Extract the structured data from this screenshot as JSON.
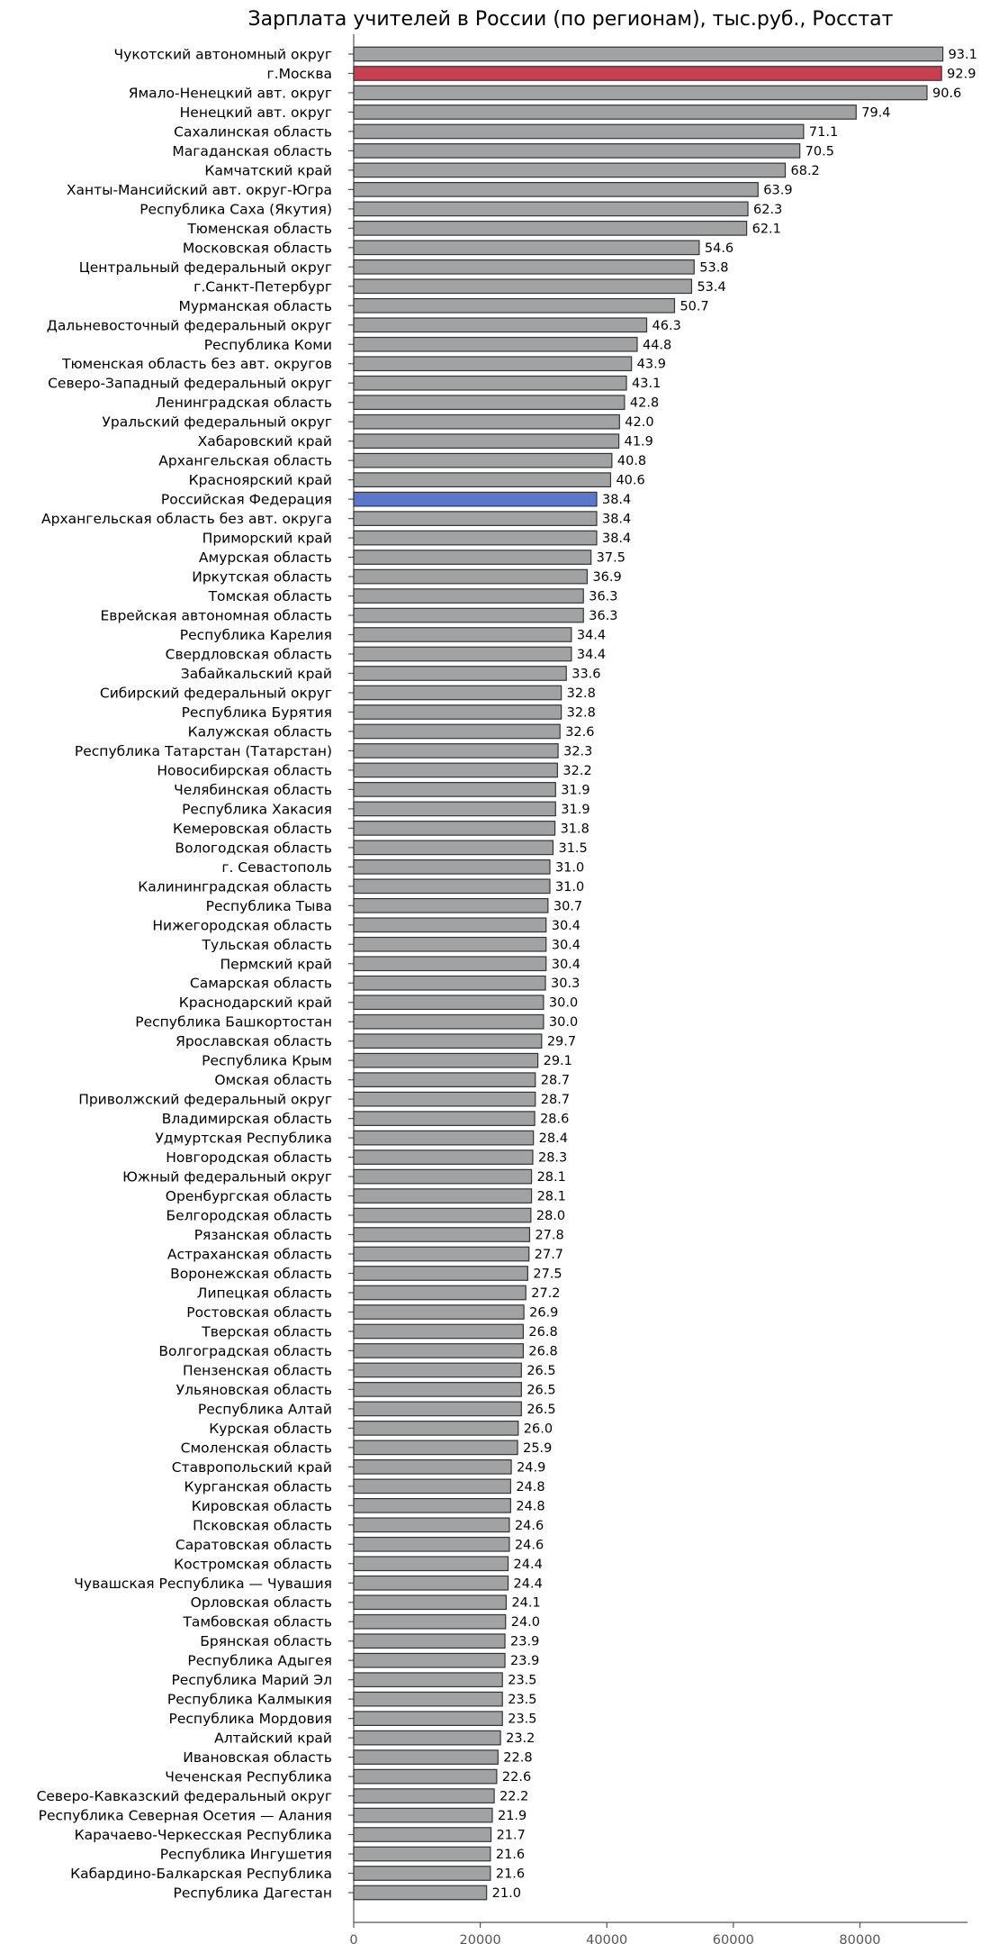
{
  "chart_data": {
    "type": "bar",
    "orientation": "horizontal",
    "title": "Зарплата учителей в России (по регионам), тыс.руб., Росстат",
    "xlabel": "",
    "ylabel": "",
    "xlim": [
      0,
      97000
    ],
    "x_ticks": [
      0,
      20000,
      40000,
      60000,
      80000
    ],
    "x_tick_labels": [
      "0",
      "20000",
      "40000",
      "60000",
      "80000"
    ],
    "colors": {
      "default": "#a0a2a4",
      "highlight_red": "#c8404f",
      "highlight_blue": "#5b77cc",
      "edge": "#333333"
    },
    "categories": [
      "Чукотский автономный округ",
      "г.Москва",
      "Ямало-Ненецкий авт. округ",
      "Ненецкий авт. округ",
      "Сахалинская область",
      "Магаданская область",
      "Камчатский край",
      "Ханты-Мансийский авт. округ-Югра",
      "Республика Саха (Якутия)",
      "Тюменская область",
      "Московская область",
      "Центральный федеральный округ",
      "г.Санкт-Петербург",
      "Мурманская область",
      "Дальневосточный федеральный округ",
      "Республика Коми",
      "Тюменская область без авт. округов",
      "Северо-Западный федеральный округ",
      "Ленинградская область",
      "Уральский федеральный округ",
      "Хабаровский край",
      "Архангельская область",
      "Красноярский край",
      "Российская Федерация",
      "Архангельская область без авт. округа",
      "Приморский край",
      "Амурская область",
      "Иркутская область",
      "Томская область",
      "Еврейская автономная область",
      "Республика Карелия",
      "Свердловская область",
      "Забайкальский край",
      "Сибирский федеральный округ",
      "Республика Бурятия",
      "Калужская область",
      "Республика Татарстан (Татарстан)",
      "Новосибирская область",
      "Челябинская область",
      "Республика Хакасия",
      "Кемеровская область",
      "Вологодская область",
      "г. Севастополь",
      "Калининградская область",
      "Республика Тыва",
      "Нижегородская область",
      "Тульская область",
      "Пермский край",
      "Самарская область",
      "Краснодарский край",
      "Республика Башкортостан",
      "Ярославская область",
      "Республика Крым",
      "Омская область",
      "Приволжский федеральный округ",
      "Владимирская область",
      "Удмуртская Республика",
      "Новгородская область",
      "Южный федеральный округ",
      "Оренбургская область",
      "Белгородская область",
      "Рязанская область",
      "Астраханская область",
      "Воронежская область",
      "Липецкая область",
      "Ростовская область",
      "Тверская область",
      "Волгоградская область",
      "Пензенская область",
      "Ульяновская область",
      "Республика Алтай",
      "Курская область",
      "Смоленская область",
      "Ставропольский край",
      "Курганская область",
      "Кировская область",
      "Псковская область",
      "Саратовская область",
      "Костромская область",
      "Чувашская Республика — Чувашия",
      "Орловская область",
      "Тамбовская область",
      "Брянская область",
      "Республика Адыгея",
      "Республика Марий Эл",
      "Республика Калмыкия",
      "Республика Мордовия",
      "Алтайский край",
      "Ивановская область",
      "Чеченская Республика",
      "Северо-Кавказский федеральный округ",
      "Республика Северная Осетия — Алания",
      "Карачаево-Черкесская Республика",
      "Республика Ингушетия",
      "Кабардино-Балкарская Республика",
      "Республика Дагестан"
    ],
    "values": [
      93100,
      92900,
      90600,
      79400,
      71100,
      70500,
      68200,
      63900,
      62300,
      62100,
      54600,
      53800,
      53400,
      50700,
      46300,
      44800,
      43900,
      43100,
      42800,
      42000,
      41900,
      40800,
      40600,
      38400,
      38400,
      38400,
      37500,
      36900,
      36300,
      36300,
      34400,
      34400,
      33600,
      32800,
      32800,
      32600,
      32300,
      32200,
      31900,
      31900,
      31800,
      31500,
      31000,
      31000,
      30700,
      30400,
      30400,
      30400,
      30300,
      30000,
      30000,
      29700,
      29100,
      28700,
      28700,
      28600,
      28400,
      28300,
      28100,
      28100,
      28000,
      27800,
      27700,
      27500,
      27200,
      26900,
      26800,
      26800,
      26500,
      26500,
      26500,
      26000,
      25900,
      24900,
      24800,
      24800,
      24600,
      24600,
      24400,
      24400,
      24100,
      24000,
      23900,
      23900,
      23500,
      23500,
      23500,
      23200,
      22800,
      22600,
      22200,
      21900,
      21700,
      21600,
      21600,
      21000
    ],
    "value_labels": [
      "93.1",
      "92.9",
      "90.6",
      "79.4",
      "71.1",
      "70.5",
      "68.2",
      "63.9",
      "62.3",
      "62.1",
      "54.6",
      "53.8",
      "53.4",
      "50.7",
      "46.3",
      "44.8",
      "43.9",
      "43.1",
      "42.8",
      "42.0",
      "41.9",
      "40.8",
      "40.6",
      "38.4",
      "38.4",
      "38.4",
      "37.5",
      "36.9",
      "36.3",
      "36.3",
      "34.4",
      "34.4",
      "33.6",
      "32.8",
      "32.8",
      "32.6",
      "32.3",
      "32.2",
      "31.9",
      "31.9",
      "31.8",
      "31.5",
      "31.0",
      "31.0",
      "30.7",
      "30.4",
      "30.4",
      "30.4",
      "30.3",
      "30.0",
      "30.0",
      "29.7",
      "29.1",
      "28.7",
      "28.7",
      "28.6",
      "28.4",
      "28.3",
      "28.1",
      "28.1",
      "28.0",
      "27.8",
      "27.7",
      "27.5",
      "27.2",
      "26.9",
      "26.8",
      "26.8",
      "26.5",
      "26.5",
      "26.5",
      "26.0",
      "25.9",
      "24.9",
      "24.8",
      "24.8",
      "24.6",
      "24.6",
      "24.4",
      "24.4",
      "24.1",
      "24.0",
      "23.9",
      "23.9",
      "23.5",
      "23.5",
      "23.5",
      "23.2",
      "22.8",
      "22.6",
      "22.2",
      "21.9",
      "21.7",
      "21.6",
      "21.6",
      "21.0"
    ],
    "highlights": {
      "1": "highlight_red",
      "23": "highlight_blue"
    }
  }
}
